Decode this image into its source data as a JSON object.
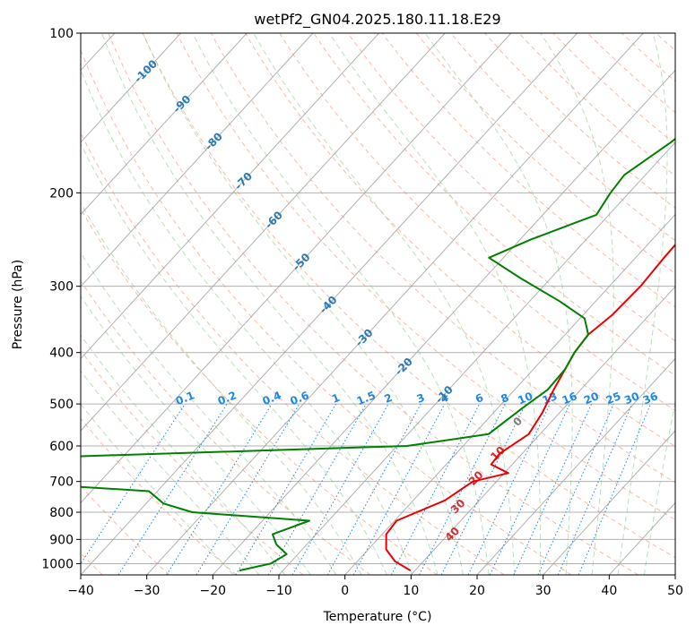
{
  "chart_data": {
    "type": "line",
    "title": "wetPf2_GN04.2025.180.11.18.E29",
    "xlabel": "Temperature (°C)",
    "ylabel": "Pressure (hPa)",
    "xlim": [
      -40,
      50
    ],
    "ylim": [
      1050,
      100
    ],
    "y_scale": "log",
    "grid": true,
    "x_ticks": [
      "−40",
      "−30",
      "−20",
      "−10",
      "0",
      "10",
      "20",
      "30",
      "40",
      "50"
    ],
    "y_ticks": [
      "100",
      "200",
      "300",
      "400",
      "500",
      "600",
      "700",
      "800",
      "900",
      "1000"
    ],
    "dry_adiabat_labels": [
      "-100",
      "-90",
      "-80",
      "-70",
      "-60",
      "-50",
      "-40",
      "-30",
      "-20",
      "-10"
    ],
    "mixing_ratio_labels": [
      "0.1",
      "0.2",
      "0.4",
      "0.6",
      "1",
      "1.5",
      "2",
      "3",
      "4",
      "6",
      "8",
      "10",
      "13",
      "16",
      "20",
      "25",
      "30",
      "36"
    ],
    "moist_adiabat_labels": [
      "0",
      "10",
      "20",
      "30",
      "40"
    ],
    "colors": {
      "temperature": "#ee0000",
      "dewpoint": "#008000",
      "dry_adiabat": "#f5a48a",
      "moist_adiabat": "#9fd39f",
      "mixing_ratio": "#1e88e5",
      "isotherm": "#9e9e9e",
      "dry_label": "#2a7ab8",
      "moist_label": "#d32f2f",
      "zero_label": "#808080"
    },
    "series": [
      {
        "name": "Temperature",
        "points": [
          [
            13.7,
            100
          ],
          [
            8.0,
            118
          ],
          [
            5.5,
            135
          ],
          [
            2.8,
            155
          ],
          [
            3.7,
            175
          ],
          [
            5.4,
            190
          ],
          [
            5.2,
            210
          ],
          [
            4.1,
            235
          ],
          [
            4.3,
            265
          ],
          [
            4.7,
            300
          ],
          [
            4.4,
            340
          ],
          [
            3.5,
            370
          ],
          [
            3.9,
            400
          ],
          [
            4.8,
            430
          ],
          [
            5.9,
            470
          ],
          [
            7.4,
            520
          ],
          [
            8.3,
            570
          ],
          [
            6.6,
            620
          ],
          [
            6.8,
            650
          ],
          [
            10.6,
            675
          ],
          [
            6.4,
            700
          ],
          [
            4.8,
            760
          ],
          [
            0.3,
            830
          ],
          [
            0.6,
            880
          ],
          [
            2.7,
            940
          ],
          [
            5.7,
            990
          ],
          [
            9.3,
            1030
          ]
        ]
      },
      {
        "name": "Dewpoint",
        "points": [
          [
            -0.2,
            100
          ],
          [
            -7.5,
            125
          ],
          [
            -9.3,
            140
          ],
          [
            -10.6,
            160
          ],
          [
            -13.2,
            185
          ],
          [
            -12.8,
            200
          ],
          [
            -11.9,
            220
          ],
          [
            -18.4,
            245
          ],
          [
            -22.2,
            265
          ],
          [
            -14.5,
            290
          ],
          [
            -5.5,
            320
          ],
          [
            0.7,
            345
          ],
          [
            3.5,
            370
          ],
          [
            3.9,
            400
          ],
          [
            4.8,
            430
          ],
          [
            5.0,
            470
          ],
          [
            3.7,
            510
          ],
          [
            2.2,
            570
          ],
          [
            -8.5,
            600
          ],
          [
            -77.7,
            640
          ],
          [
            -74.5,
            690
          ],
          [
            -41.3,
            730
          ],
          [
            -37.4,
            770
          ],
          [
            -31.8,
            800
          ],
          [
            -12.9,
            830
          ],
          [
            -16.6,
            880
          ],
          [
            -14.6,
            920
          ],
          [
            -11.7,
            960
          ],
          [
            -12.8,
            1000
          ],
          [
            -16.6,
            1030
          ]
        ]
      }
    ]
  }
}
